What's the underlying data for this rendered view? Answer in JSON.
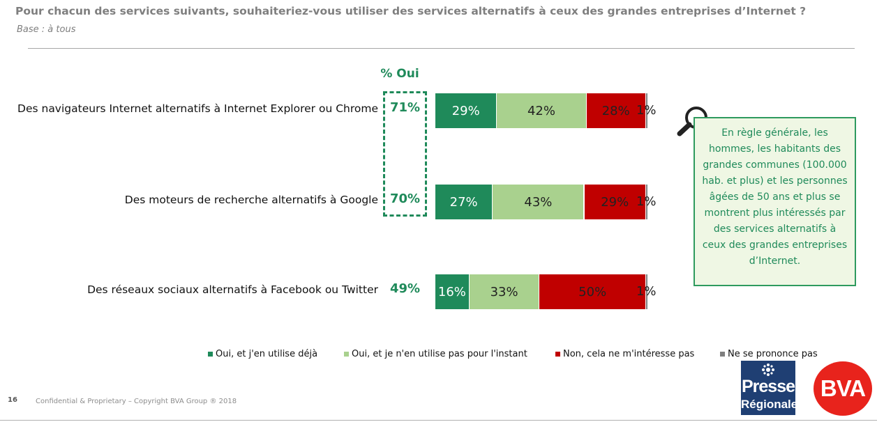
{
  "header": {
    "title": "Pour chacun des services suivants, souhaiteriez-vous utiliser des services alternatifs à ceux des grandes entreprises d’Internet ?",
    "subtitle": "Base : à tous"
  },
  "chart_data": {
    "type": "bar",
    "orientation": "horizontal-stacked-100",
    "oui_header": "% Oui",
    "categories": [
      "Des navigateurs Internet alternatifs à Internet Explorer ou Chrome",
      "Des moteurs de recherche alternatifs à Google",
      "Des réseaux sociaux alternatifs à Facebook ou Twitter"
    ],
    "pct_oui": [
      "71%",
      "70%",
      "49%"
    ],
    "series": [
      {
        "name": "Oui, et j'en utilise déjà",
        "color": "#1f8a5a",
        "values": [
          29,
          27,
          16
        ]
      },
      {
        "name": "Oui, et je n'en utilise pas pour l'instant",
        "color": "#a9d18e",
        "values": [
          42,
          43,
          33
        ]
      },
      {
        "name": "Non, cela ne m'intéresse pas",
        "color": "#c00000",
        "values": [
          28,
          29,
          50
        ]
      },
      {
        "name": "Ne se prononce pas",
        "color": "#7f7f7f",
        "values": [
          1,
          1,
          1
        ]
      }
    ],
    "xlim": [
      0,
      100
    ]
  },
  "callout": {
    "text": "En règle générale, les hommes, les habitants des grandes communes (100.000 hab. et plus) et les personnes âgées de 50 ans et plus se montrent plus intéressés par des services alternatifs à ceux des grandes entreprises d’Internet."
  },
  "footer": {
    "page_number": "16",
    "copyright": "Confidential & Proprietary – Copyright BVA Group ®  2018"
  },
  "logos": {
    "presse_line1": "Presse",
    "presse_line2": "Régionale",
    "bva": "BVA"
  }
}
